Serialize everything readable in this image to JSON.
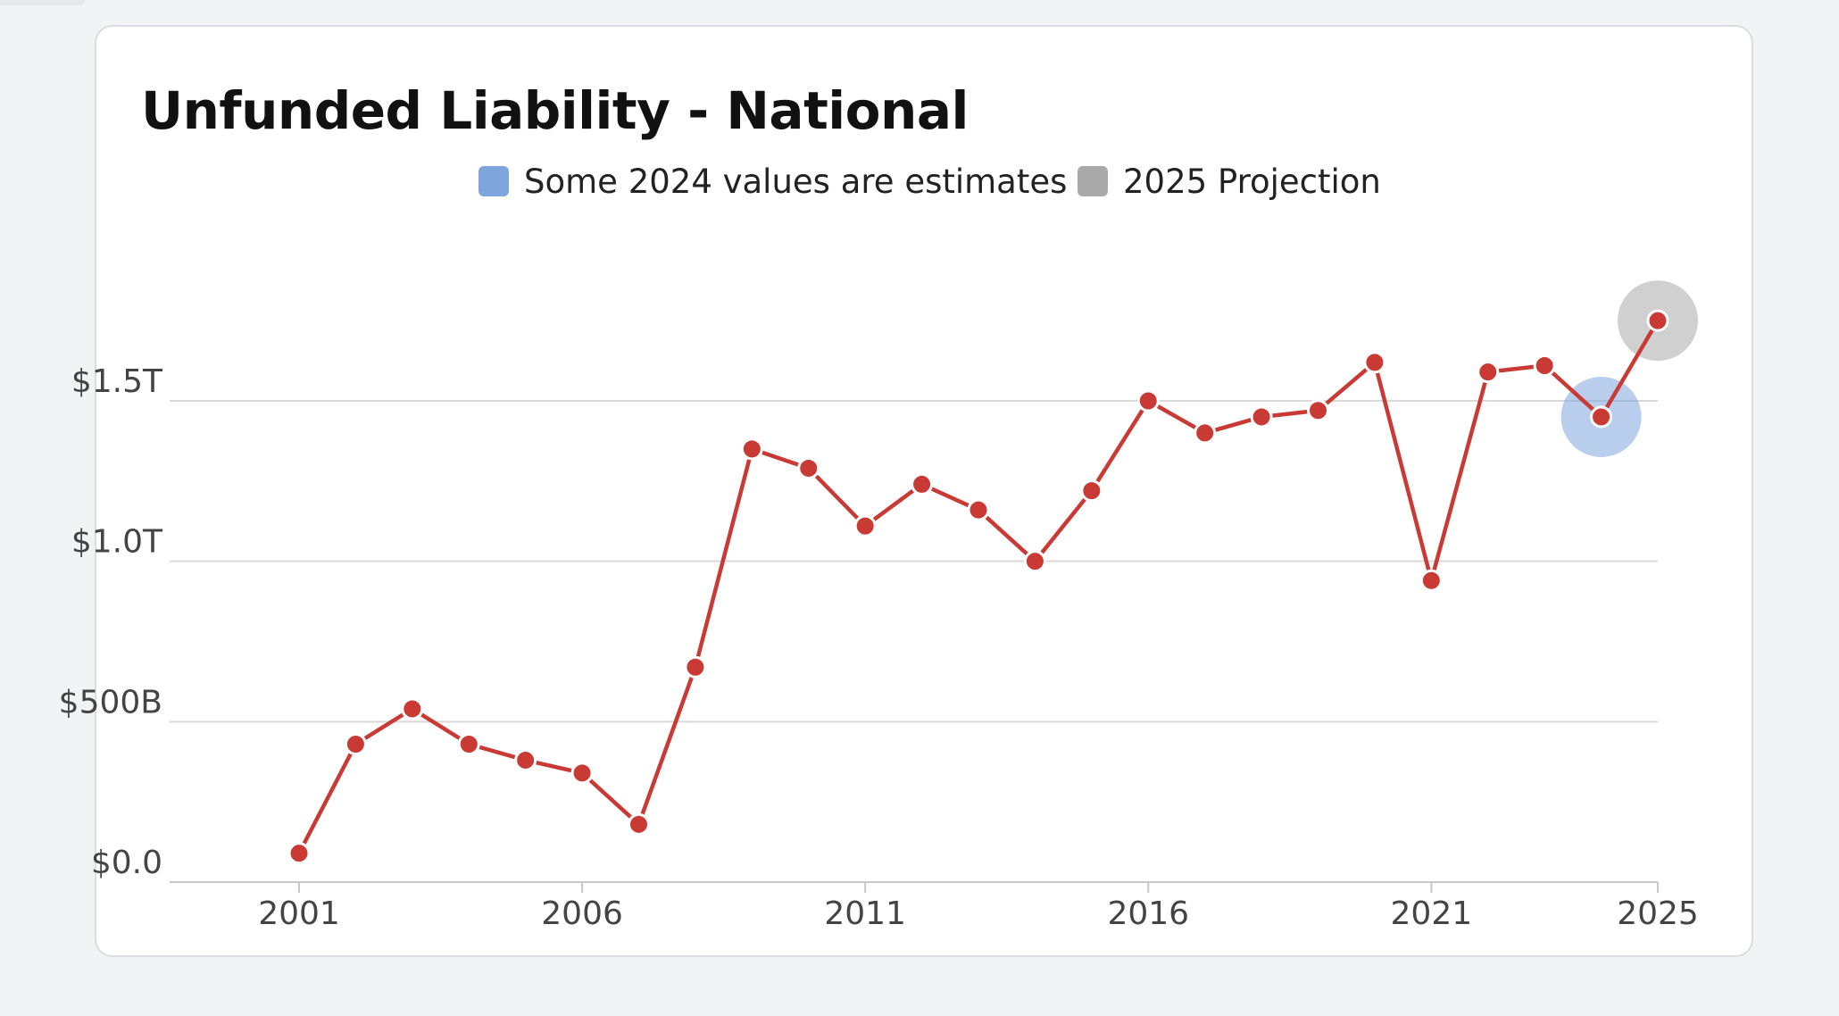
{
  "chart_data": {
    "type": "line",
    "title": "Unfunded Liability - National",
    "legend": [
      {
        "label": "Some 2024 values are estimates",
        "color": "#7ea6dc"
      },
      {
        "label": "2025 Projection",
        "color": "#a9a9a9"
      }
    ],
    "legend_placement": "top-center",
    "x": [
      2001,
      2002,
      2003,
      2004,
      2005,
      2006,
      2007,
      2008,
      2009,
      2010,
      2011,
      2012,
      2013,
      2014,
      2015,
      2016,
      2017,
      2018,
      2019,
      2020,
      2021,
      2022,
      2023,
      2024,
      2025
    ],
    "series": [
      {
        "color": "#c93a35",
        "values": [
          0.09,
          0.43,
          0.54,
          0.43,
          0.38,
          0.34,
          0.18,
          0.67,
          1.35,
          1.29,
          1.11,
          1.24,
          1.16,
          1.0,
          1.22,
          1.5,
          1.4,
          1.45,
          1.47,
          1.62,
          0.94,
          1.59,
          1.61,
          1.45,
          1.75
        ]
      }
    ],
    "highlights": [
      {
        "x": 2024,
        "legend": "Some 2024 values are estimates"
      },
      {
        "x": 2025,
        "legend": "2025 Projection"
      }
    ],
    "y_unit": "trillions of dollars",
    "ylim": [
      0,
      1.8
    ],
    "yticks": [
      {
        "value": 0,
        "label": "$0.0"
      },
      {
        "value": 0.5,
        "label": "$500B"
      },
      {
        "value": 1.0,
        "label": "$1.0T"
      },
      {
        "value": 1.5,
        "label": "$1.5T"
      }
    ],
    "xticks": [
      {
        "value": 2001,
        "label": "2001"
      },
      {
        "value": 2006,
        "label": "2006"
      },
      {
        "value": 2011,
        "label": "2011"
      },
      {
        "value": 2016,
        "label": "2016"
      },
      {
        "value": 2021,
        "label": "2021"
      },
      {
        "value": 2025,
        "label": "2025"
      }
    ],
    "grid": true,
    "xlabel": "",
    "ylabel": ""
  }
}
